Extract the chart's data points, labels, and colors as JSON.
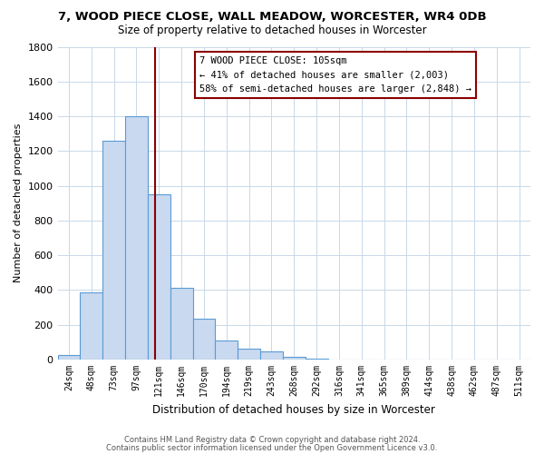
{
  "title": "7, WOOD PIECE CLOSE, WALL MEADOW, WORCESTER, WR4 0DB",
  "subtitle": "Size of property relative to detached houses in Worcester",
  "xlabel": "Distribution of detached houses by size in Worcester",
  "ylabel": "Number of detached properties",
  "bar_color": "#c9d9f0",
  "bar_edge_color": "#5b9bd5",
  "background_color": "#ffffff",
  "grid_color": "#c8d8e8",
  "categories": [
    "24sqm",
    "48sqm",
    "73sqm",
    "97sqm",
    "121sqm",
    "146sqm",
    "170sqm",
    "194sqm",
    "219sqm",
    "243sqm",
    "268sqm",
    "292sqm",
    "316sqm",
    "341sqm",
    "365sqm",
    "389sqm",
    "414sqm",
    "438sqm",
    "462sqm",
    "487sqm",
    "511sqm"
  ],
  "values": [
    25,
    385,
    1260,
    1400,
    950,
    415,
    235,
    110,
    65,
    48,
    15,
    5,
    2,
    1,
    0,
    0,
    0,
    0,
    0,
    0,
    0
  ],
  "ylim": [
    0,
    1800
  ],
  "yticks": [
    0,
    200,
    400,
    600,
    800,
    1000,
    1200,
    1400,
    1600,
    1800
  ],
  "property_line_x": 3.83,
  "property_line_color": "#8b0000",
  "annotation_title": "7 WOOD PIECE CLOSE: 105sqm",
  "annotation_line1": "← 41% of detached houses are smaller (2,003)",
  "annotation_line2": "58% of semi-detached houses are larger (2,848) →",
  "annotation_box_color": "#ffffff",
  "annotation_box_edge": "#8b0000",
  "footer1": "Contains HM Land Registry data © Crown copyright and database right 2024.",
  "footer2": "Contains public sector information licensed under the Open Government Licence v3.0."
}
